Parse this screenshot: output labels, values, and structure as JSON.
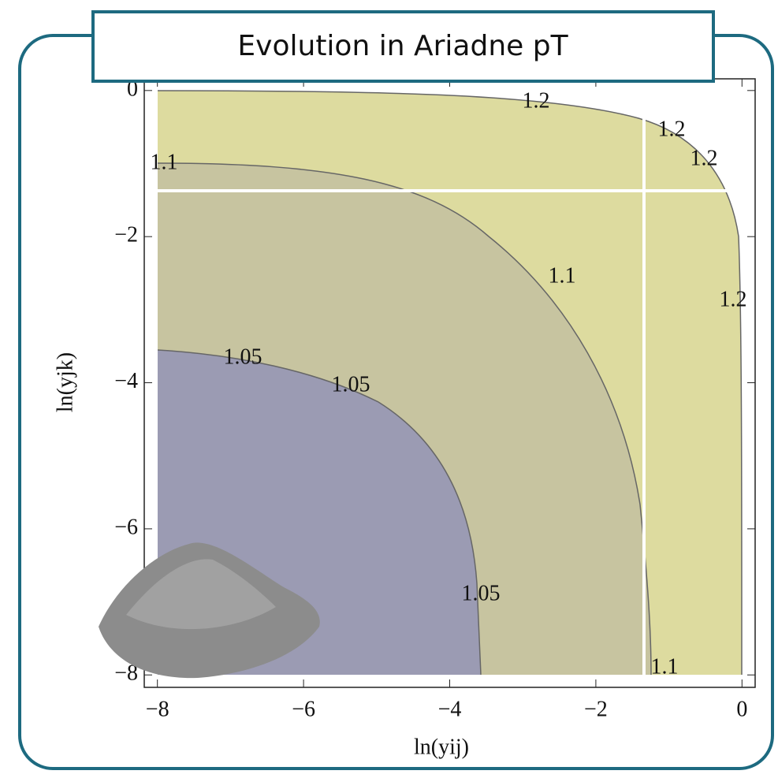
{
  "chart_data": {
    "type": "contour",
    "title": "Evolution in Ariadne pT",
    "x_label": "ln(yij)",
    "y_label": "ln(yjk)",
    "xlim": [
      -8.18,
      0.18
    ],
    "ylim": [
      -8.17,
      0.16
    ],
    "xticks": [
      {
        "value": -8,
        "label": "−8"
      },
      {
        "value": -6,
        "label": "−6"
      },
      {
        "value": -4,
        "label": "−4"
      },
      {
        "value": -2,
        "label": "−2"
      },
      0
    ],
    "yticks": [
      0,
      {
        "value": -2,
        "label": "−2"
      },
      {
        "value": -4,
        "label": "−4"
      },
      {
        "value": -6,
        "label": "−6"
      },
      {
        "value": -8,
        "label": "−8"
      }
    ],
    "levels": [
      1.05,
      1.1,
      1.2
    ],
    "colors": [
      "#9b9bb3",
      "#c7c4a0",
      "#dddb9f"
    ],
    "contour_labels": [
      1.2,
      1.2,
      1.2,
      1.1,
      1.1,
      1.2,
      1.05,
      1.05,
      1.05,
      1.1
    ]
  }
}
